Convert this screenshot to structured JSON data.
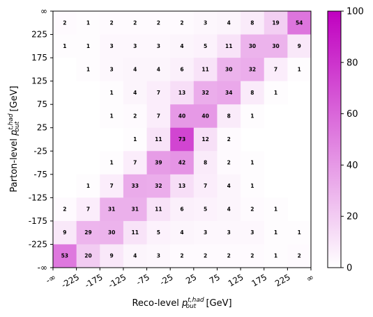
{
  "chart_data": {
    "type": "heatmap",
    "title": "",
    "xlabel": {
      "base": "Reco-level ",
      "main": "p",
      "sub": "out",
      "sup": "t,had",
      "unit": " [GeV]"
    },
    "ylabel": {
      "base": "Parton-level ",
      "main": "p",
      "sub": "out",
      "sup": "t,had",
      "unit": " [GeV]"
    },
    "x_ticks": [
      "-∞",
      "-225",
      "-175",
      "-125",
      "-75",
      "-25",
      "25",
      "75",
      "125",
      "175",
      "225",
      "∞"
    ],
    "y_ticks": [
      "∞",
      "225",
      "175",
      "125",
      "75",
      "25",
      "-25",
      "-75",
      "-125",
      "-175",
      "-225",
      "-∞"
    ],
    "colorbar": {
      "range": [
        0,
        100
      ],
      "ticks": [
        "0",
        "20",
        "40",
        "60",
        "80",
        "100"
      ],
      "color_low": "#ffffff",
      "color_high": "#c000c0"
    },
    "rows_top_to_bottom": [
      [
        2,
        1,
        2,
        2,
        2,
        2,
        3,
        4,
        8,
        19,
        54
      ],
      [
        1,
        1,
        3,
        3,
        3,
        4,
        5,
        11,
        30,
        30,
        9
      ],
      [
        null,
        1,
        3,
        4,
        4,
        6,
        11,
        30,
        32,
        7,
        1
      ],
      [
        null,
        null,
        1,
        4,
        7,
        13,
        32,
        34,
        8,
        1,
        null
      ],
      [
        null,
        null,
        1,
        2,
        7,
        40,
        40,
        8,
        1,
        null,
        null
      ],
      [
        null,
        null,
        null,
        1,
        11,
        73,
        12,
        2,
        null,
        null,
        null
      ],
      [
        null,
        null,
        1,
        7,
        39,
        42,
        8,
        2,
        1,
        null,
        null
      ],
      [
        null,
        1,
        7,
        33,
        32,
        13,
        7,
        4,
        1,
        null,
        null
      ],
      [
        2,
        7,
        31,
        31,
        11,
        6,
        5,
        4,
        2,
        1,
        null
      ],
      [
        9,
        29,
        30,
        11,
        5,
        4,
        3,
        3,
        3,
        1,
        1
      ],
      [
        53,
        20,
        9,
        4,
        3,
        2,
        2,
        2,
        2,
        1,
        2
      ]
    ]
  }
}
